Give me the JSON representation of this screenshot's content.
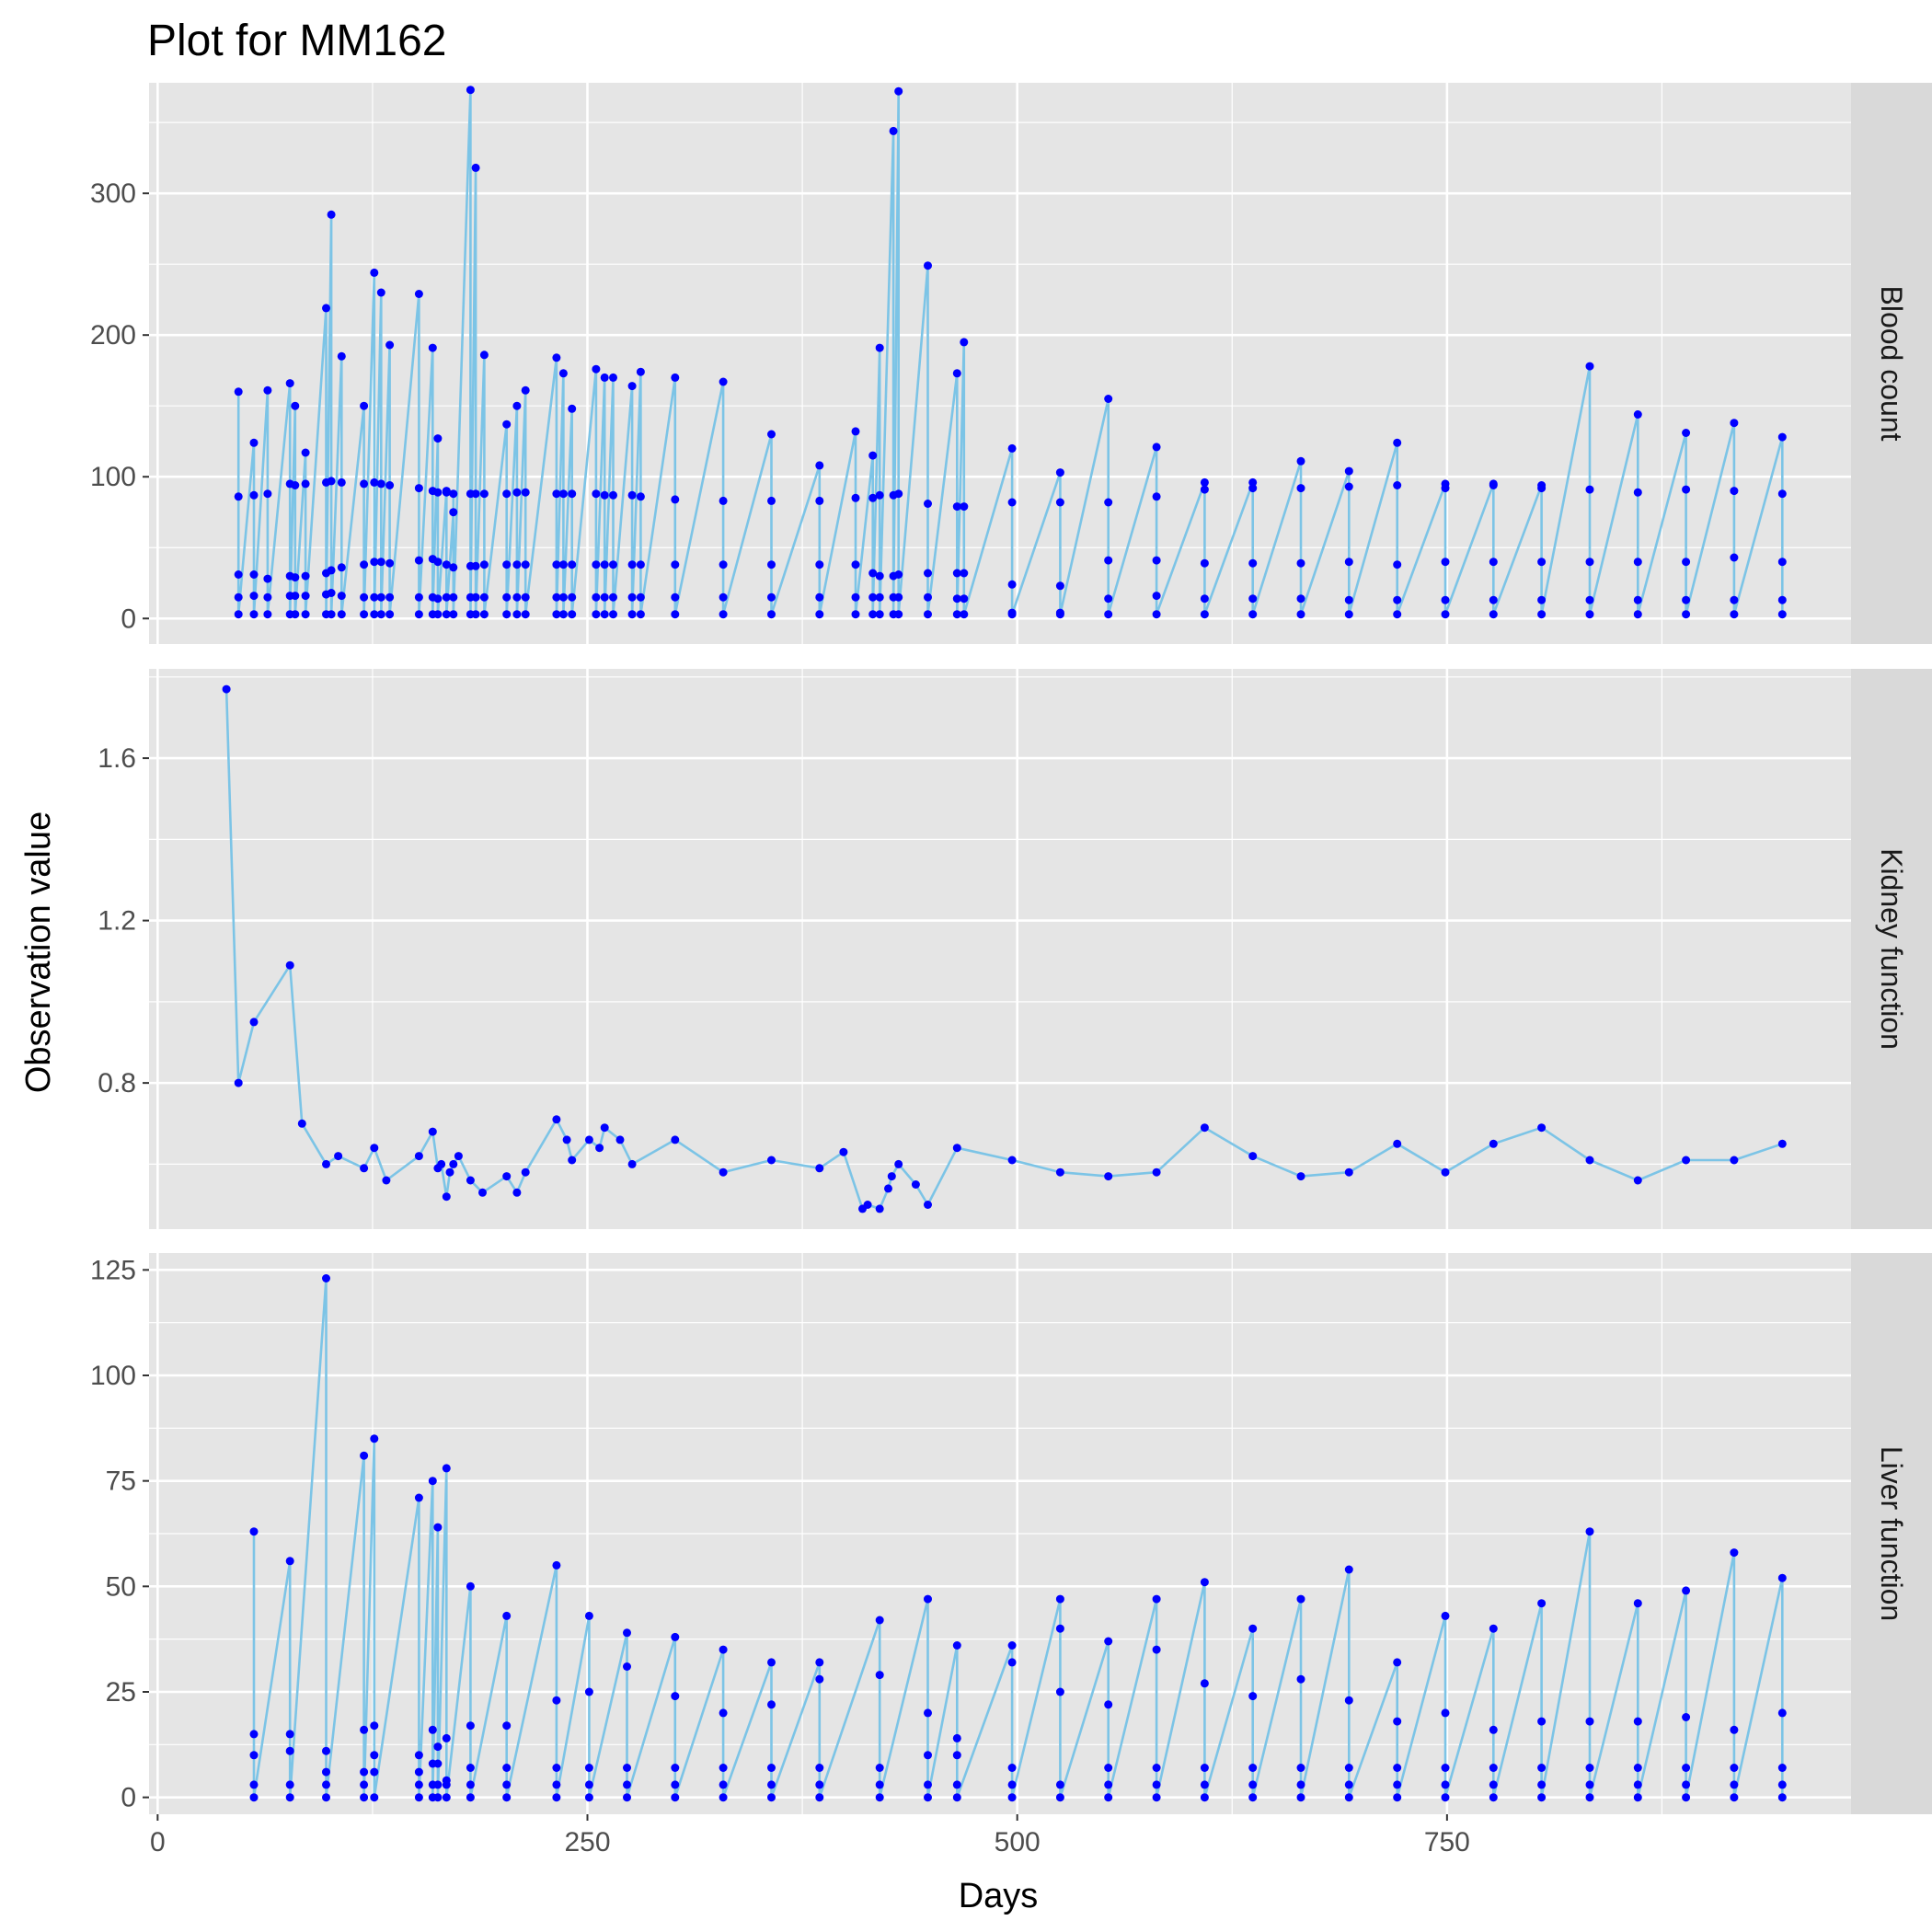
{
  "chart_data": {
    "type": "line",
    "title": "Plot for MM162",
    "xlabel": "Days",
    "ylabel": "Observation value",
    "xlim": [
      -5,
      985
    ],
    "x_ticks": [
      0,
      250,
      500,
      750
    ],
    "line_color": "#7CC4E6",
    "point_color": "#0000FF",
    "panel_background": "#E5E5E5",
    "strip_background": "#D9D9D9",
    "grid": true,
    "panels": [
      {
        "label": "Blood count",
        "ylim": [
          -18,
          378
        ],
        "y_ticks": [
          0,
          100,
          200,
          300
        ],
        "x": [
          47,
          47,
          47,
          47,
          47,
          56,
          56,
          56,
          56,
          56,
          64,
          64,
          64,
          64,
          64,
          77,
          77,
          77,
          77,
          77,
          80,
          80,
          80,
          80,
          80,
          86,
          86,
          86,
          86,
          86,
          98,
          98,
          98,
          98,
          98,
          101,
          101,
          101,
          101,
          101,
          107,
          107,
          107,
          107,
          107,
          120,
          120,
          120,
          120,
          120,
          126,
          126,
          126,
          126,
          126,
          130,
          130,
          130,
          130,
          130,
          135,
          135,
          135,
          135,
          135,
          152,
          152,
          152,
          152,
          152,
          160,
          160,
          160,
          160,
          160,
          163,
          163,
          163,
          163,
          163,
          168,
          168,
          168,
          168,
          168,
          172,
          172,
          172,
          172,
          172,
          182,
          182,
          182,
          182,
          182,
          185,
          185,
          185,
          185,
          185,
          190,
          190,
          190,
          190,
          190,
          203,
          203,
          203,
          203,
          203,
          209,
          209,
          209,
          209,
          209,
          214,
          214,
          214,
          214,
          214,
          232,
          232,
          232,
          232,
          232,
          236,
          236,
          236,
          236,
          236,
          241,
          241,
          241,
          241,
          241,
          255,
          255,
          255,
          255,
          255,
          260,
          260,
          260,
          260,
          260,
          265,
          265,
          265,
          265,
          265,
          276,
          276,
          276,
          276,
          276,
          281,
          281,
          281,
          281,
          281,
          301,
          301,
          301,
          301,
          301,
          329,
          329,
          329,
          329,
          329,
          357,
          357,
          357,
          357,
          357,
          385,
          385,
          385,
          385,
          385,
          406,
          406,
          406,
          406,
          406,
          416,
          416,
          416,
          416,
          416,
          420,
          420,
          420,
          420,
          420,
          428,
          428,
          428,
          428,
          428,
          431,
          431,
          431,
          431,
          431,
          448,
          448,
          448,
          448,
          448,
          465,
          465,
          465,
          465,
          465,
          469,
          469,
          469,
          469,
          469,
          497,
          497,
          497,
          497,
          497,
          525,
          525,
          525,
          525,
          525,
          553,
          553,
          553,
          553,
          553,
          581,
          581,
          581,
          581,
          581,
          609,
          609,
          609,
          609,
          609,
          637,
          637,
          637,
          637,
          637,
          665,
          665,
          665,
          665,
          665,
          693,
          693,
          693,
          693,
          693,
          721,
          721,
          721,
          721,
          721,
          749,
          749,
          749,
          749,
          749,
          777,
          777,
          777,
          777,
          777,
          805,
          805,
          805,
          805,
          805,
          833,
          833,
          833,
          833,
          833,
          861,
          861,
          861,
          861,
          861,
          889,
          889,
          889,
          889,
          889,
          917,
          917,
          917,
          917,
          917,
          945,
          945,
          945,
          945,
          945
        ],
        "y": [
          160,
          86,
          31,
          15,
          3,
          124,
          87,
          31,
          16,
          3,
          161,
          88,
          28,
          15,
          3,
          166,
          95,
          30,
          16,
          3,
          150,
          94,
          29,
          16,
          3,
          117,
          95,
          30,
          16,
          3,
          219,
          96,
          32,
          17,
          3,
          285,
          97,
          34,
          18,
          3,
          185,
          96,
          36,
          16,
          3,
          150,
          95,
          38,
          15,
          3,
          244,
          96,
          40,
          15,
          3,
          230,
          95,
          40,
          15,
          3,
          193,
          94,
          39,
          15,
          3,
          229,
          92,
          41,
          15,
          3,
          191,
          90,
          42,
          15,
          3,
          127,
          89,
          40,
          14,
          3,
          90,
          89,
          38,
          15,
          3,
          75,
          88,
          36,
          15,
          3,
          373,
          88,
          37,
          15,
          3,
          318,
          88,
          37,
          15,
          3,
          186,
          88,
          38,
          15,
          3,
          137,
          88,
          38,
          15,
          3,
          150,
          89,
          38,
          15,
          3,
          161,
          89,
          38,
          15,
          3,
          184,
          88,
          38,
          15,
          3,
          173,
          88,
          38,
          15,
          3,
          148,
          88,
          38,
          15,
          3,
          176,
          88,
          38,
          15,
          3,
          170,
          87,
          38,
          15,
          3,
          170,
          87,
          38,
          15,
          3,
          164,
          87,
          38,
          15,
          3,
          174,
          86,
          38,
          15,
          3,
          170,
          84,
          38,
          15,
          3,
          167,
          83,
          38,
          15,
          3,
          130,
          83,
          38,
          15,
          3,
          108,
          83,
          38,
          15,
          3,
          132,
          85,
          38,
          15,
          3,
          115,
          85,
          32,
          15,
          3,
          191,
          87,
          30,
          15,
          3,
          344,
          87,
          30,
          15,
          3,
          372,
          88,
          31,
          15,
          3,
          249,
          81,
          32,
          15,
          3,
          173,
          79,
          32,
          14,
          3,
          195,
          79,
          32,
          14,
          3,
          120,
          82,
          24,
          4,
          3,
          103,
          82,
          23,
          4,
          3,
          155,
          82,
          41,
          14,
          3,
          121,
          86,
          41,
          16,
          3,
          96,
          91,
          39,
          14,
          3,
          96,
          92,
          39,
          14,
          3,
          111,
          92,
          39,
          14,
          3,
          104,
          93,
          40,
          13,
          3,
          124,
          94,
          38,
          13,
          3,
          95,
          92,
          40,
          13,
          3,
          95,
          94,
          40,
          13,
          3,
          94,
          92,
          40,
          13,
          3,
          178,
          91,
          40,
          13,
          3,
          144,
          89,
          40,
          13,
          3,
          131,
          91,
          40,
          13,
          3,
          138,
          90,
          43,
          13,
          3,
          128,
          88,
          40,
          13,
          3
        ]
      },
      {
        "label": "Kidney function",
        "ylim": [
          0.44,
          1.82
        ],
        "y_ticks": [
          0.8,
          1.2,
          1.6
        ],
        "x": [
          40,
          47,
          56,
          77,
          84,
          98,
          105,
          120,
          126,
          133,
          152,
          160,
          163,
          165,
          168,
          170,
          172,
          175,
          182,
          189,
          203,
          209,
          214,
          232,
          238,
          241,
          251,
          257,
          260,
          269,
          276,
          301,
          329,
          357,
          385,
          399,
          410,
          413,
          420,
          425,
          427,
          431,
          441,
          448,
          465,
          497,
          525,
          553,
          581,
          609,
          637,
          665,
          693,
          721,
          749,
          777,
          805,
          833,
          861,
          889,
          917,
          945
        ],
        "y": [
          1.77,
          0.8,
          0.95,
          1.09,
          0.7,
          0.6,
          0.62,
          0.59,
          0.64,
          0.56,
          0.62,
          0.68,
          0.59,
          0.6,
          0.52,
          0.58,
          0.6,
          0.62,
          0.56,
          0.53,
          0.57,
          0.53,
          0.58,
          0.71,
          0.66,
          0.61,
          0.66,
          0.64,
          0.69,
          0.66,
          0.6,
          0.66,
          0.58,
          0.61,
          0.59,
          0.63,
          0.49,
          0.5,
          0.49,
          0.54,
          0.57,
          0.6,
          0.55,
          0.5,
          0.64,
          0.61,
          0.58,
          0.57,
          0.58,
          0.69,
          0.62,
          0.57,
          0.58,
          0.65,
          0.58,
          0.65,
          0.69,
          0.61,
          0.56,
          0.61,
          0.61,
          0.65
        ]
      },
      {
        "label": "Liver function",
        "ylim": [
          -4,
          129
        ],
        "y_ticks": [
          0,
          25,
          50,
          75,
          100,
          125
        ],
        "x": [
          56,
          56,
          56,
          56,
          56,
          77,
          77,
          77,
          77,
          77,
          98,
          98,
          98,
          98,
          98,
          120,
          120,
          120,
          120,
          120,
          126,
          126,
          126,
          126,
          126,
          152,
          152,
          152,
          152,
          152,
          160,
          160,
          160,
          160,
          160,
          163,
          163,
          163,
          163,
          163,
          168,
          168,
          168,
          168,
          168,
          182,
          182,
          182,
          182,
          182,
          203,
          203,
          203,
          203,
          203,
          232,
          232,
          232,
          232,
          232,
          251,
          251,
          251,
          251,
          251,
          273,
          273,
          273,
          273,
          273,
          301,
          301,
          301,
          301,
          301,
          329,
          329,
          329,
          329,
          329,
          357,
          357,
          357,
          357,
          357,
          385,
          385,
          385,
          385,
          385,
          420,
          420,
          420,
          420,
          420,
          448,
          448,
          448,
          448,
          448,
          465,
          465,
          465,
          465,
          465,
          497,
          497,
          497,
          497,
          497,
          525,
          525,
          525,
          525,
          525,
          553,
          553,
          553,
          553,
          553,
          581,
          581,
          581,
          581,
          581,
          609,
          609,
          609,
          609,
          609,
          637,
          637,
          637,
          637,
          637,
          665,
          665,
          665,
          665,
          665,
          693,
          693,
          693,
          693,
          693,
          721,
          721,
          721,
          721,
          721,
          749,
          749,
          749,
          749,
          749,
          777,
          777,
          777,
          777,
          777,
          805,
          805,
          805,
          805,
          805,
          833,
          833,
          833,
          833,
          833,
          861,
          861,
          861,
          861,
          861,
          889,
          889,
          889,
          889,
          889,
          917,
          917,
          917,
          917,
          917,
          945,
          945,
          945,
          945,
          945
        ],
        "y": [
          63,
          15,
          10,
          3,
          0,
          56,
          15,
          11,
          3,
          0,
          123,
          11,
          6,
          3,
          0,
          81,
          16,
          6,
          3,
          0,
          85,
          17,
          10,
          6,
          0,
          71,
          10,
          6,
          3,
          0,
          75,
          16,
          8,
          3,
          0,
          64,
          12,
          8,
          3,
          0,
          78,
          14,
          4,
          3,
          0,
          50,
          17,
          7,
          3,
          0,
          43,
          17,
          7,
          3,
          0,
          55,
          23,
          7,
          3,
          0,
          43,
          25,
          7,
          3,
          0,
          39,
          31,
          7,
          3,
          0,
          38,
          24,
          7,
          3,
          0,
          35,
          20,
          7,
          3,
          0,
          32,
          22,
          7,
          3,
          0,
          32,
          28,
          7,
          3,
          0,
          42,
          29,
          7,
          3,
          0,
          47,
          20,
          10,
          3,
          0,
          36,
          14,
          10,
          3,
          0,
          36,
          32,
          7,
          3,
          0,
          47,
          40,
          25,
          3,
          0,
          37,
          22,
          7,
          3,
          0,
          47,
          35,
          7,
          3,
          0,
          51,
          27,
          7,
          3,
          0,
          40,
          24,
          7,
          3,
          0,
          47,
          28,
          7,
          3,
          0,
          54,
          23,
          7,
          3,
          0,
          32,
          18,
          7,
          3,
          0,
          43,
          20,
          7,
          3,
          0,
          40,
          16,
          7,
          3,
          0,
          46,
          18,
          7,
          3,
          0,
          63,
          18,
          7,
          3,
          0,
          46,
          18,
          7,
          3,
          0,
          49,
          19,
          7,
          3,
          0,
          58,
          16,
          7,
          3,
          0,
          52,
          20,
          7,
          3,
          0
        ]
      }
    ]
  }
}
